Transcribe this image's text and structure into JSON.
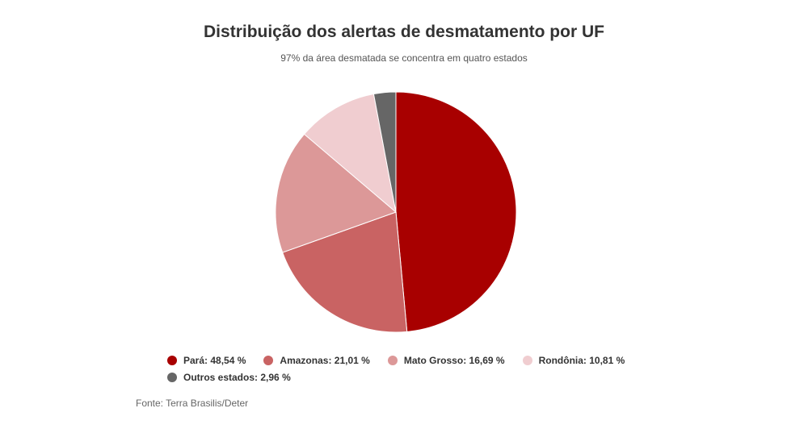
{
  "chart_data": {
    "type": "pie",
    "title": "Distribuição dos alertas de desmatamento por UF",
    "subtitle": "97% da área desmatada se concentra em quatro estados",
    "slices": [
      {
        "label": "Pará",
        "value": 48.54,
        "display": "48,54 %",
        "color": "#a80000"
      },
      {
        "label": "Amazonas",
        "value": 21.01,
        "display": "21,01 %",
        "color": "#c96363"
      },
      {
        "label": "Mato Grosso",
        "value": 16.69,
        "display": "16,69 %",
        "color": "#dc9898"
      },
      {
        "label": "Rondônia",
        "value": 10.81,
        "display": "10,81 %",
        "color": "#f0cdd0"
      },
      {
        "label": "Outros estados",
        "value": 2.96,
        "display": "2,96 %",
        "color": "#666666"
      }
    ],
    "legend_position": "bottom",
    "source": "Fonte: Terra Brasilis/Deter"
  }
}
